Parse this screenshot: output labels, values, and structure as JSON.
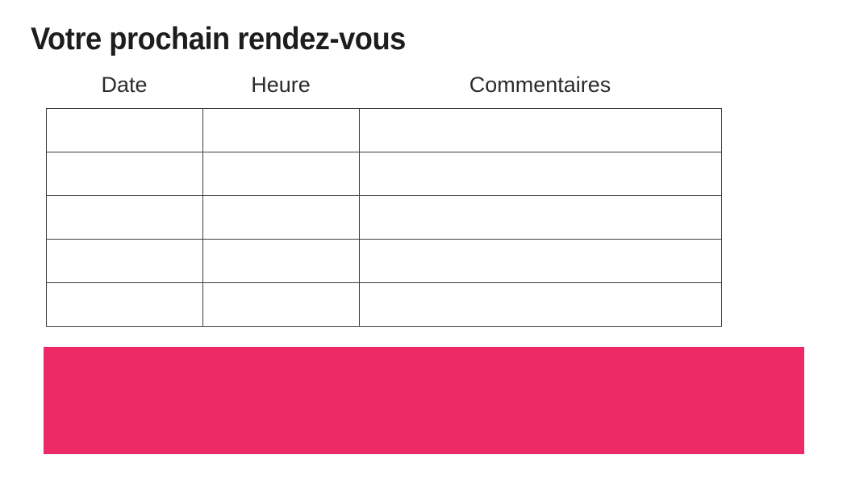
{
  "page": {
    "title": "Votre prochain rendez-vous"
  },
  "appointments_table": {
    "columns": [
      "Date",
      "Heure",
      "Commentaires"
    ],
    "rows": [
      [
        "",
        "",
        ""
      ],
      [
        "",
        "",
        ""
      ],
      [
        "",
        "",
        ""
      ],
      [
        "",
        "",
        ""
      ],
      [
        "",
        "",
        ""
      ]
    ]
  },
  "footer_banner": {
    "text": ""
  },
  "colors": {
    "accent_pink": "#ED2A66",
    "table_border": "#3C3C3C",
    "title_text": "#1D1D1B",
    "header_text": "#2B2B2B"
  }
}
